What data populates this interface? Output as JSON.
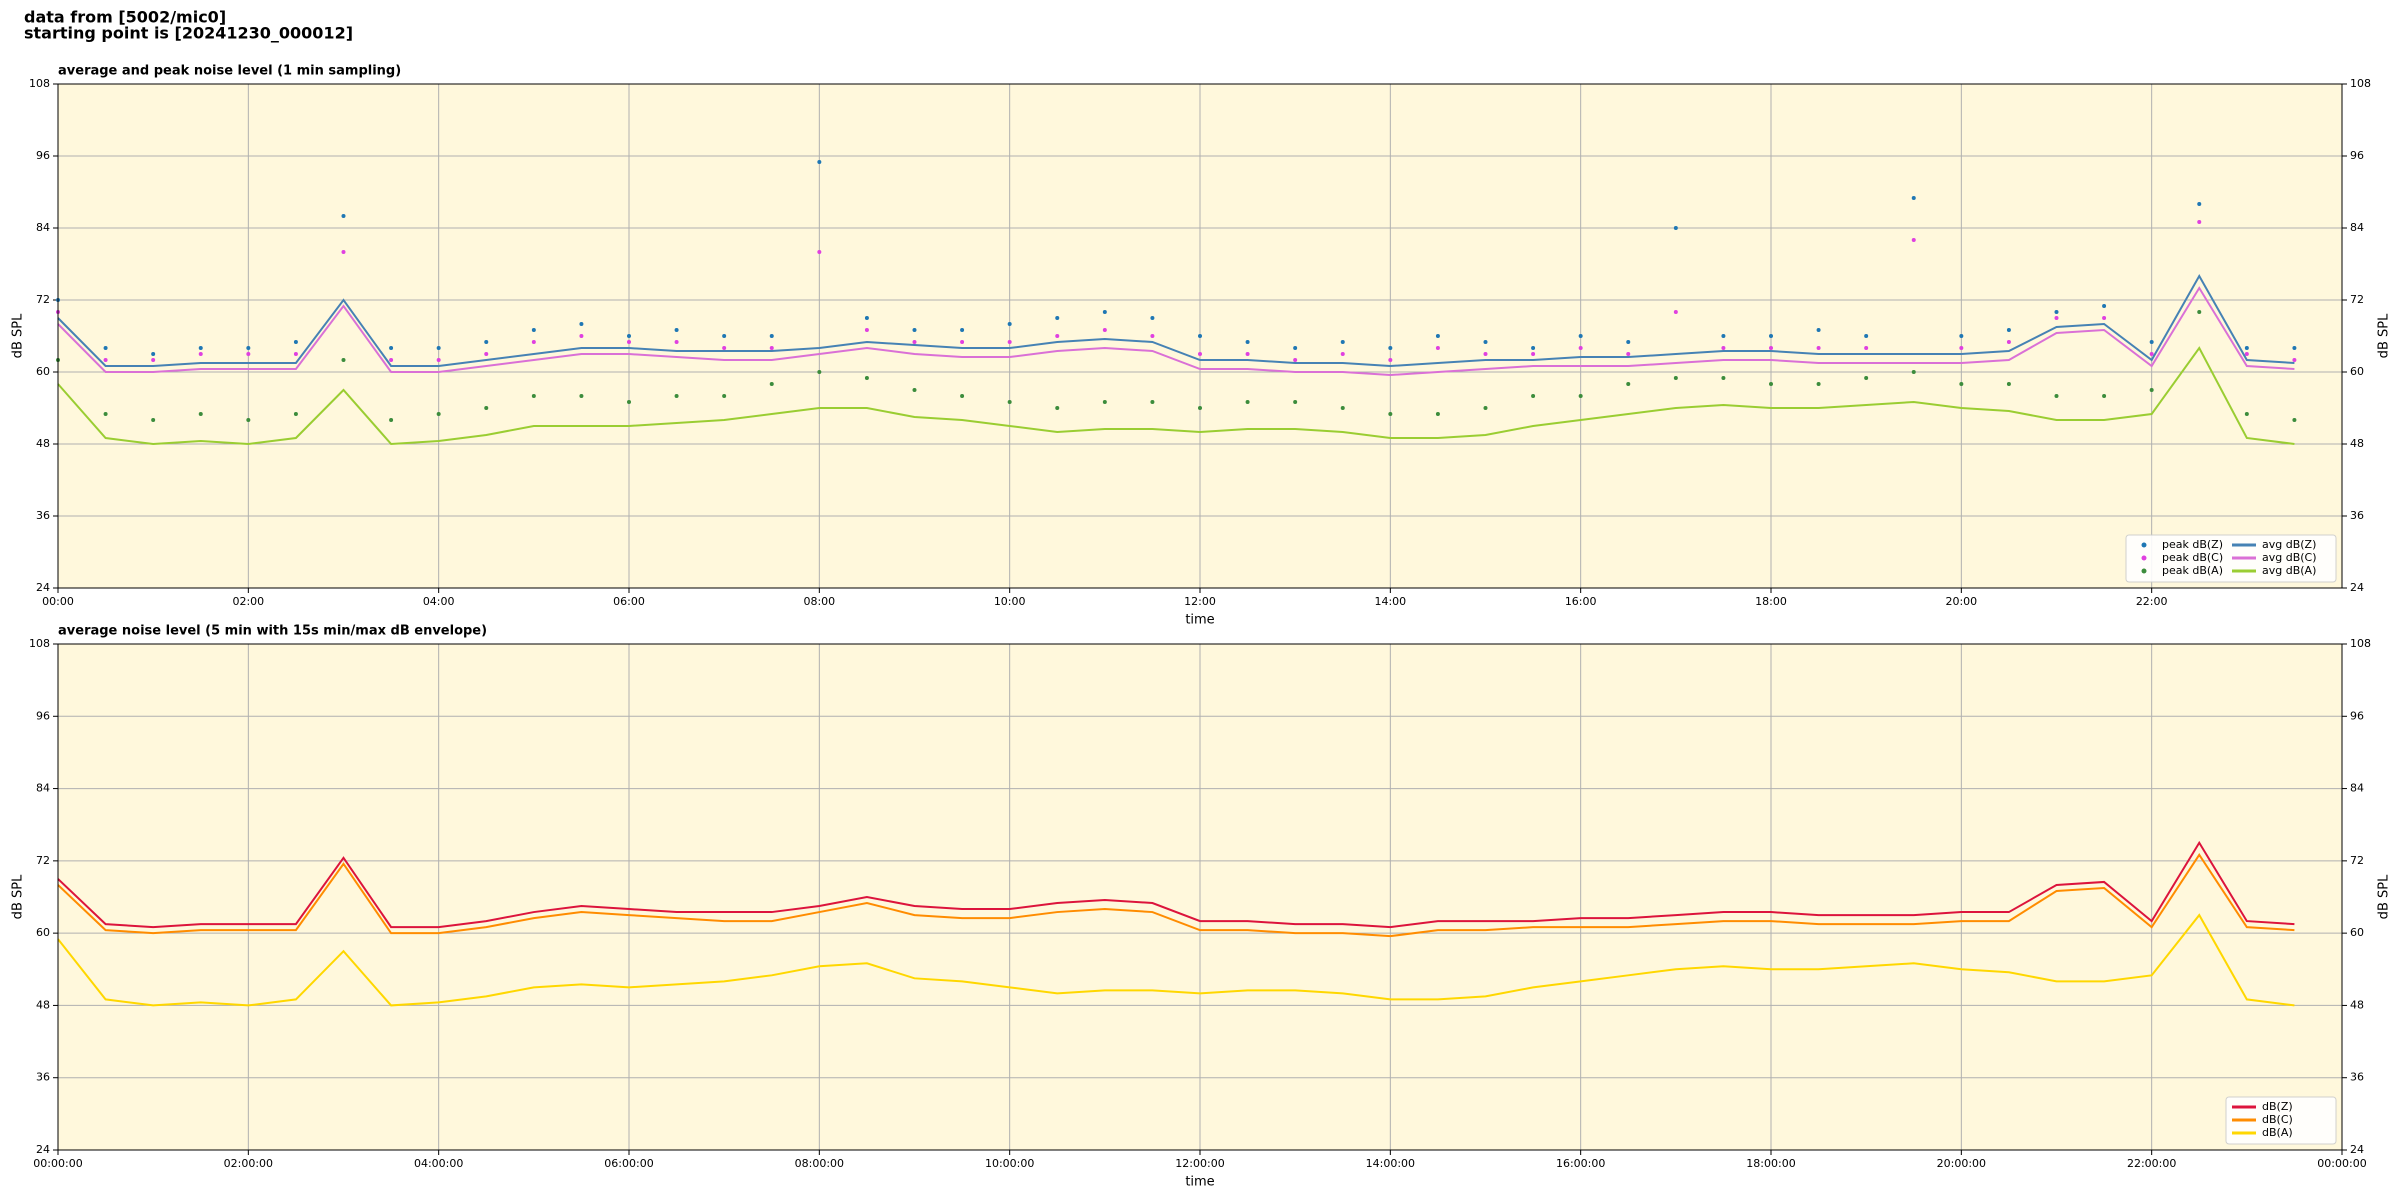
{
  "header": {
    "lines": [
      "data from [5002/mic0]",
      "starting point is [20241230_000012]"
    ]
  },
  "chart_data": [
    {
      "type": "line",
      "title": "average and peak noise level (1 min sampling)",
      "xlabel": "time",
      "ylabel": "dB SPL",
      "x": [
        0,
        0.5,
        1,
        1.5,
        2,
        2.5,
        3,
        3.5,
        4,
        4.5,
        5,
        5.5,
        6,
        6.5,
        7,
        7.5,
        8,
        8.5,
        9,
        9.5,
        10,
        10.5,
        11,
        11.5,
        12,
        12.5,
        13,
        13.5,
        14,
        14.5,
        15,
        15.5,
        16,
        16.5,
        17,
        17.5,
        18,
        18.5,
        19,
        19.5,
        20,
        20.5,
        21,
        21.5,
        22,
        22.5,
        23,
        23.5
      ],
      "xlim": [
        0,
        24
      ],
      "ylim": [
        24,
        108
      ],
      "yticks": [
        24,
        36,
        48,
        60,
        72,
        84,
        96,
        108
      ],
      "xticks": [
        {
          "value": 0,
          "label": "00:00"
        },
        {
          "value": 2,
          "label": "02:00"
        },
        {
          "value": 4,
          "label": "04:00"
        },
        {
          "value": 6,
          "label": "06:00"
        },
        {
          "value": 8,
          "label": "08:00"
        },
        {
          "value": 10,
          "label": "10:00"
        },
        {
          "value": 12,
          "label": "12:00"
        },
        {
          "value": 14,
          "label": "14:00"
        },
        {
          "value": 16,
          "label": "16:00"
        },
        {
          "value": 18,
          "label": "18:00"
        },
        {
          "value": 20,
          "label": "20:00"
        },
        {
          "value": 22,
          "label": "22:00"
        }
      ],
      "grid": true,
      "legend": "lower right",
      "legend_columns": 2,
      "series": [
        {
          "name": "peak dB(Z)",
          "style": "markers",
          "color": "#1f77b4",
          "values": [
            72,
            64,
            63,
            64,
            64,
            65,
            86,
            64,
            64,
            65,
            67,
            68,
            66,
            67,
            66,
            66,
            95,
            69,
            67,
            67,
            68,
            69,
            70,
            69,
            66,
            65,
            64,
            65,
            64,
            66,
            65,
            64,
            66,
            65,
            84,
            66,
            66,
            67,
            66,
            89,
            66,
            67,
            70,
            71,
            65,
            88,
            64,
            64
          ]
        },
        {
          "name": "peak dB(C)",
          "style": "markers",
          "color": "#e040e0",
          "values": [
            70,
            62,
            62,
            63,
            63,
            63,
            80,
            62,
            62,
            63,
            65,
            66,
            65,
            65,
            64,
            64,
            80,
            67,
            65,
            65,
            65,
            66,
            67,
            66,
            63,
            63,
            62,
            63,
            62,
            64,
            63,
            63,
            64,
            63,
            70,
            64,
            64,
            64,
            64,
            82,
            64,
            65,
            69,
            69,
            63,
            85,
            63,
            62
          ]
        },
        {
          "name": "peak dB(A)",
          "style": "markers",
          "color": "#3c8c3c",
          "values": [
            62,
            53,
            52,
            53,
            52,
            53,
            62,
            52,
            53,
            54,
            56,
            56,
            55,
            56,
            56,
            58,
            60,
            59,
            57,
            56,
            55,
            54,
            55,
            55,
            54,
            55,
            55,
            54,
            53,
            53,
            54,
            56,
            56,
            58,
            59,
            59,
            58,
            58,
            59,
            60,
            58,
            58,
            56,
            56,
            57,
            70,
            53,
            52
          ]
        },
        {
          "name": "avg dB(Z)",
          "style": "line",
          "color": "#4682b4",
          "values": [
            69,
            61,
            61,
            61.5,
            61.5,
            61.5,
            72,
            61,
            61,
            62,
            63,
            64,
            64,
            63.5,
            63.5,
            63.5,
            64,
            65,
            64.5,
            64,
            64,
            65,
            65.5,
            65,
            62,
            62,
            61.5,
            61.5,
            61,
            61.5,
            62,
            62,
            62.5,
            62.5,
            63,
            63.5,
            63.5,
            63,
            63,
            63,
            63,
            63.5,
            67.5,
            68,
            62,
            76,
            62,
            61.5
          ]
        },
        {
          "name": "avg dB(C)",
          "style": "line",
          "color": "#da70d6",
          "values": [
            68,
            60,
            60,
            60.5,
            60.5,
            60.5,
            71,
            60,
            60,
            61,
            62,
            63,
            63,
            62.5,
            62,
            62,
            63,
            64,
            63,
            62.5,
            62.5,
            63.5,
            64,
            63.5,
            60.5,
            60.5,
            60,
            60,
            59.5,
            60,
            60.5,
            61,
            61,
            61,
            61.5,
            62,
            62,
            61.5,
            61.5,
            61.5,
            61.5,
            62,
            66.5,
            67,
            61,
            74,
            61,
            60.5
          ]
        },
        {
          "name": "avg dB(A)",
          "style": "line",
          "color": "#9acd32",
          "values": [
            58,
            49,
            48,
            48.5,
            48,
            49,
            57,
            48,
            48.5,
            49.5,
            51,
            51,
            51,
            51.5,
            52,
            53,
            54,
            54,
            52.5,
            52,
            51,
            50,
            50.5,
            50.5,
            50,
            50.5,
            50.5,
            50,
            49,
            49,
            49.5,
            51,
            52,
            53,
            54,
            54.5,
            54,
            54,
            54.5,
            55,
            54,
            53.5,
            52,
            52,
            53,
            64,
            49,
            48
          ]
        }
      ]
    },
    {
      "type": "line",
      "title": "average noise level (5 min with 15s min/max dB envelope)",
      "xlabel": "time",
      "ylabel": "dB SPL",
      "x": [
        0,
        0.5,
        1,
        1.5,
        2,
        2.5,
        3,
        3.5,
        4,
        4.5,
        5,
        5.5,
        6,
        6.5,
        7,
        7.5,
        8,
        8.5,
        9,
        9.5,
        10,
        10.5,
        11,
        11.5,
        12,
        12.5,
        13,
        13.5,
        14,
        14.5,
        15,
        15.5,
        16,
        16.5,
        17,
        17.5,
        18,
        18.5,
        19,
        19.5,
        20,
        20.5,
        21,
        21.5,
        22,
        22.5,
        23,
        23.5
      ],
      "xlim": [
        0,
        24
      ],
      "ylim": [
        24,
        108
      ],
      "yticks": [
        24,
        36,
        48,
        60,
        72,
        84,
        96,
        108
      ],
      "xticks": [
        {
          "value": 0,
          "label": "00:00:00"
        },
        {
          "value": 2,
          "label": "02:00:00"
        },
        {
          "value": 4,
          "label": "04:00:00"
        },
        {
          "value": 6,
          "label": "06:00:00"
        },
        {
          "value": 8,
          "label": "08:00:00"
        },
        {
          "value": 10,
          "label": "10:00:00"
        },
        {
          "value": 12,
          "label": "12:00:00"
        },
        {
          "value": 14,
          "label": "14:00:00"
        },
        {
          "value": 16,
          "label": "16:00:00"
        },
        {
          "value": 18,
          "label": "18:00:00"
        },
        {
          "value": 20,
          "label": "20:00:00"
        },
        {
          "value": 22,
          "label": "22:00:00"
        },
        {
          "value": 24,
          "label": "00:00:00"
        }
      ],
      "grid": true,
      "legend": "lower right",
      "legend_columns": 1,
      "series": [
        {
          "name": "dB(Z)",
          "style": "line",
          "color": "#dc143c",
          "values": [
            69,
            61.5,
            61,
            61.5,
            61.5,
            61.5,
            72.5,
            61,
            61,
            62,
            63.5,
            64.5,
            64,
            63.5,
            63.5,
            63.5,
            64.5,
            66,
            64.5,
            64,
            64,
            65,
            65.5,
            65,
            62,
            62,
            61.5,
            61.5,
            61,
            62,
            62,
            62,
            62.5,
            62.5,
            63,
            63.5,
            63.5,
            63,
            63,
            63,
            63.5,
            63.5,
            68,
            68.5,
            62,
            75,
            62,
            61.5
          ]
        },
        {
          "name": "dB(C)",
          "style": "line",
          "color": "#ff8c00",
          "values": [
            68,
            60.5,
            60,
            60.5,
            60.5,
            60.5,
            71.5,
            60,
            60,
            61,
            62.5,
            63.5,
            63,
            62.5,
            62,
            62,
            63.5,
            65,
            63,
            62.5,
            62.5,
            63.5,
            64,
            63.5,
            60.5,
            60.5,
            60,
            60,
            59.5,
            60.5,
            60.5,
            61,
            61,
            61,
            61.5,
            62,
            62,
            61.5,
            61.5,
            61.5,
            62,
            62,
            67,
            67.5,
            61,
            73,
            61,
            60.5
          ]
        },
        {
          "name": "dB(A)",
          "style": "line",
          "color": "#ffd700",
          "values": [
            59,
            49,
            48,
            48.5,
            48,
            49,
            57,
            48,
            48.5,
            49.5,
            51,
            51.5,
            51,
            51.5,
            52,
            53,
            54.5,
            55,
            52.5,
            52,
            51,
            50,
            50.5,
            50.5,
            50,
            50.5,
            50.5,
            50,
            49,
            49,
            49.5,
            51,
            52,
            53,
            54,
            54.5,
            54,
            54,
            54.5,
            55,
            54,
            53.5,
            52,
            52,
            53,
            63,
            49,
            48
          ]
        }
      ]
    }
  ]
}
